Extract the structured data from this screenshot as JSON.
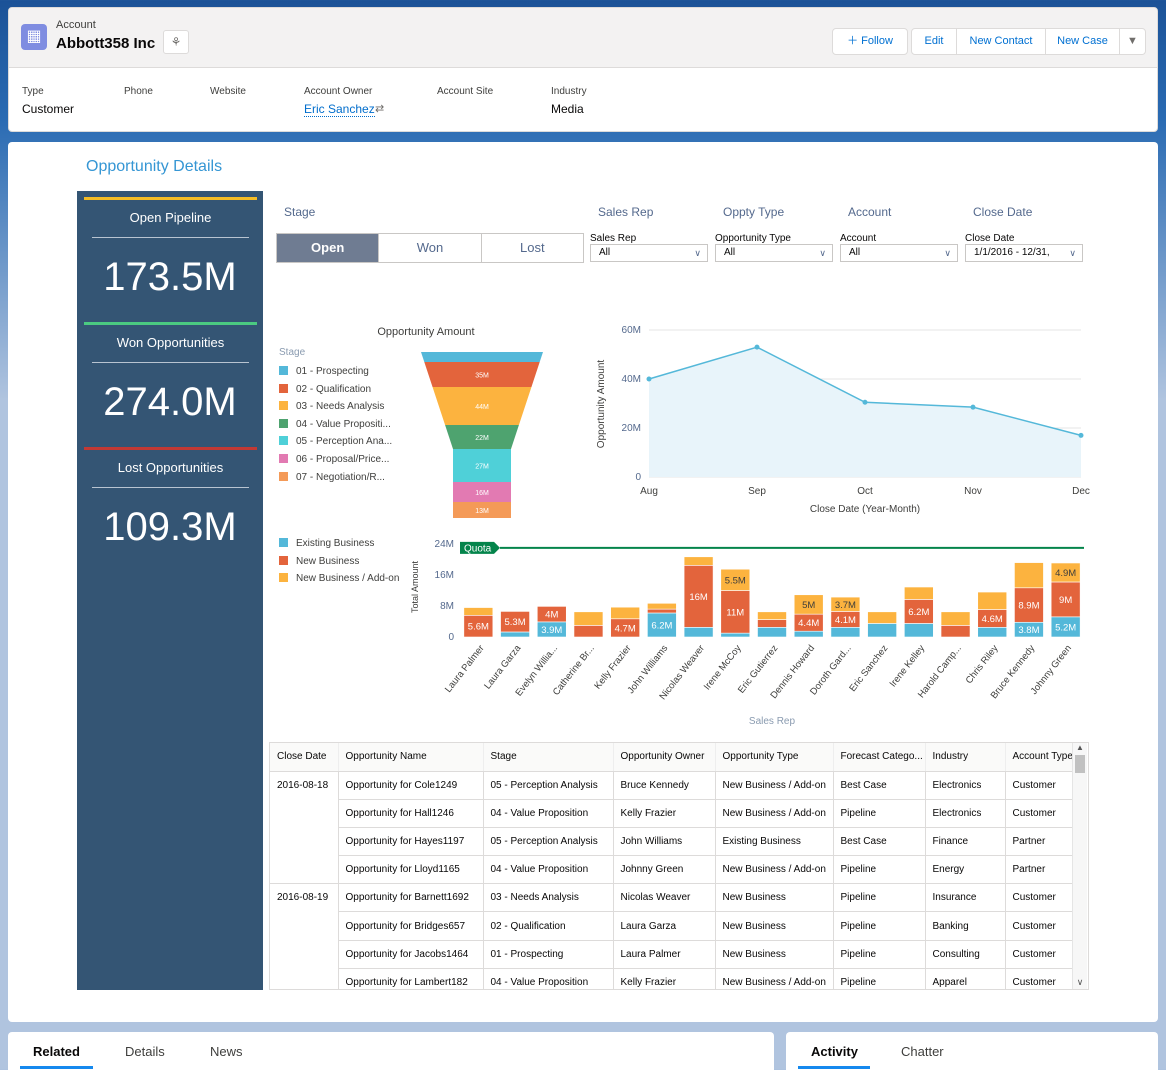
{
  "header": {
    "object_type": "Account",
    "account_name": "Abbott358 Inc",
    "buttons": {
      "follow": "Follow",
      "edit": "Edit",
      "new_contact": "New Contact",
      "new_case": "New Case"
    },
    "fields": {
      "type_label": "Type",
      "type_value": "Customer",
      "phone_label": "Phone",
      "website_label": "Website",
      "owner_label": "Account Owner",
      "owner_value": "Eric Sanchez",
      "site_label": "Account Site",
      "industry_label": "Industry",
      "industry_value": "Media"
    }
  },
  "dashboard": {
    "title": "Opportunity Details",
    "kpis": [
      {
        "label": "Open Pipeline",
        "value": "173.5M",
        "color": "#f4bc25"
      },
      {
        "label": "Won Opportunities",
        "value": "274.0M",
        "color": "#4bca81"
      },
      {
        "label": "Lost Opportunities",
        "value": "109.3M",
        "color": "#c23934"
      }
    ],
    "filters": {
      "stage_header": "Stage",
      "sales_rep_header": "Sales Rep",
      "oppty_type_header": "Oppty Type",
      "account_header": "Account",
      "close_date_header": "Close Date",
      "stage_options": [
        "Open",
        "Won",
        "Lost"
      ],
      "sales_rep_label": "Sales Rep",
      "sales_rep_value": "All",
      "opp_type_label": "Opportunity Type",
      "opp_type_value": "All",
      "account_label": "Account",
      "account_value": "All",
      "close_date_label": "Close Date",
      "close_date_value": "1/1/2016 - 12/31,"
    }
  },
  "chart_data": [
    {
      "type": "funnel",
      "title": "Opportunity Amount",
      "legend_title": "Stage",
      "stages": [
        {
          "name": "01 - Prospecting",
          "label": "",
          "value": 4,
          "color": "#54b8d9"
        },
        {
          "name": "02 - Qualification",
          "label": "35M",
          "value": 35,
          "color": "#e3643c"
        },
        {
          "name": "03 - Needs Analysis",
          "label": "44M",
          "value": 44,
          "color": "#fcb33f"
        },
        {
          "name": "04 - Value Propositi...",
          "label": "22M",
          "value": 22,
          "color": "#4ea36f"
        },
        {
          "name": "05 - Perception Ana...",
          "label": "27M",
          "value": 27,
          "color": "#4fd0d8"
        },
        {
          "name": "06 - Proposal/Price...",
          "label": "16M",
          "value": 16,
          "color": "#e27ab2"
        },
        {
          "name": "07 - Negotiation/R...",
          "label": "13M",
          "value": 13,
          "color": "#f49a58"
        }
      ]
    },
    {
      "type": "area",
      "x": [
        "Aug",
        "Sep",
        "Oct",
        "Nov",
        "Dec"
      ],
      "values": [
        40,
        53,
        30.5,
        28.5,
        17
      ],
      "xlabel": "Close Date (Year-Month)",
      "ylabel": "Opportunity Amount",
      "yticks": [
        "0",
        "20M",
        "40M",
        "60M"
      ],
      "ylim": [
        0,
        60
      ],
      "color": "#54b8d9"
    },
    {
      "type": "bar",
      "stacked": true,
      "xlabel": "Sales Rep",
      "ylabel": "Total Amount",
      "yticks": [
        "0",
        "8M",
        "16M",
        "24M"
      ],
      "ylim": [
        0,
        24
      ],
      "quota": {
        "label": "Quota",
        "value": 23,
        "color": "#04844b"
      },
      "categories": [
        "Laura Palmer",
        "Laura Garza",
        "Evelyn Willia...",
        "Catherine Br...",
        "Kelly Frazier",
        "John Williams",
        "Nicolas Weaver",
        "Irene McCoy",
        "Eric Gutierrez",
        "Dennis Howard",
        "Doroth Gard...",
        "Eric Sanchez",
        "Irene Kelley",
        "Harold Camp...",
        "Chris Riley",
        "Bruce Kennedy",
        "Johnny Green"
      ],
      "series": [
        {
          "name": "Existing Business",
          "color": "#54b8d9",
          "values": [
            0,
            1.3,
            3.9,
            0,
            0,
            6.2,
            2.5,
            1,
            2.5,
            1.5,
            2.5,
            3.5,
            3.5,
            0,
            2.5,
            3.8,
            5.2
          ],
          "labels": [
            "",
            "",
            "3.9M",
            "",
            "",
            "6.2M",
            "",
            "",
            "",
            "",
            "",
            "",
            "",
            "",
            "",
            "3.8M",
            "5.2M"
          ]
        },
        {
          "name": "New Business",
          "color": "#e3643c",
          "values": [
            5.6,
            5.3,
            4,
            3,
            4.7,
            1,
            16,
            11,
            2,
            4.4,
            4.1,
            0,
            6.2,
            3,
            4.6,
            8.9,
            9
          ],
          "labels": [
            "5.6M",
            "5.3M",
            "4M",
            "",
            "4.7M",
            "",
            "16M",
            "11M",
            "",
            "4.4M",
            "4.1M",
            "",
            "6.2M",
            "",
            "4.6M",
            "8.9M",
            "9M"
          ]
        },
        {
          "name": "New Business / Add-on",
          "color": "#fcb33f",
          "values": [
            2,
            0,
            0,
            3.5,
            3,
            1.5,
            2.2,
            5.5,
            2,
            5,
            3.7,
            3,
            3.2,
            3.5,
            4.5,
            6.5,
            4.9
          ],
          "labels": [
            "",
            "",
            "",
            "",
            "",
            "",
            "",
            "5.5M",
            "",
            "5M",
            "3.7M",
            "",
            "",
            "",
            "",
            "",
            "4.9M"
          ]
        }
      ]
    }
  ],
  "table": {
    "columns": [
      "Close Date",
      "Opportunity Name",
      "Stage",
      "Opportunity Owner",
      "Opportunity Type",
      "Forecast Catego...",
      "Industry",
      "Account Type"
    ],
    "groups": [
      {
        "date": "2016-08-18",
        "rows": [
          [
            "Opportunity for Cole1249",
            "05 - Perception Analysis",
            "Bruce Kennedy",
            "New Business / Add-on",
            "Best Case",
            "Electronics",
            "Customer"
          ],
          [
            "Opportunity for Hall1246",
            "04 - Value Proposition",
            "Kelly Frazier",
            "New Business / Add-on",
            "Pipeline",
            "Electronics",
            "Customer"
          ],
          [
            "Opportunity for Hayes1197",
            "05 - Perception Analysis",
            "John Williams",
            "Existing Business",
            "Best Case",
            "Finance",
            "Partner"
          ],
          [
            "Opportunity for Lloyd1165",
            "04 - Value Proposition",
            "Johnny Green",
            "New Business / Add-on",
            "Pipeline",
            "Energy",
            "Partner"
          ]
        ]
      },
      {
        "date": "2016-08-19",
        "rows": [
          [
            "Opportunity for Barnett1692",
            "03 - Needs Analysis",
            "Nicolas Weaver",
            "New Business",
            "Pipeline",
            "Insurance",
            "Customer"
          ],
          [
            "Opportunity for Bridges657",
            "02 - Qualification",
            "Laura Garza",
            "New Business",
            "Pipeline",
            "Banking",
            "Customer"
          ],
          [
            "Opportunity for Jacobs1464",
            "01 - Prospecting",
            "Laura Palmer",
            "New Business",
            "Pipeline",
            "Consulting",
            "Customer"
          ],
          [
            "Opportunity for Lambert182",
            "04 - Value Proposition",
            "Kelly Frazier",
            "New Business / Add-on",
            "Pipeline",
            "Apparel",
            "Customer"
          ]
        ]
      }
    ]
  },
  "bottom_tabs": {
    "left": [
      "Related",
      "Details",
      "News"
    ],
    "right": [
      "Activity",
      "Chatter"
    ]
  }
}
